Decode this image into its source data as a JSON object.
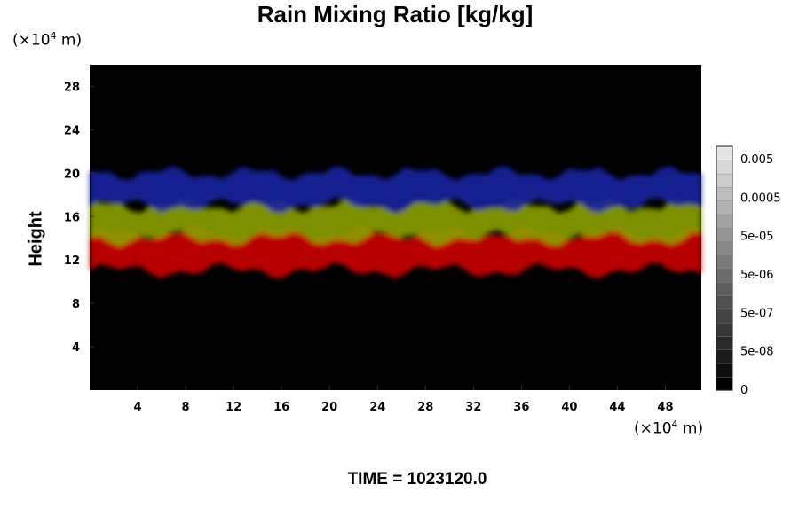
{
  "chart_data": {
    "type": "heatmap",
    "title": "Rain Mixing Ratio [kg/kg]",
    "ylabel": "Height",
    "y_unit": {
      "prefix": "(×10",
      "exp": "4",
      "suffix": " m)"
    },
    "x_unit": {
      "prefix": "(×10",
      "exp": "4",
      "suffix": " m)"
    },
    "xlim": [
      0,
      51
    ],
    "ylim": [
      0,
      30
    ],
    "x_ticks": [
      4,
      8,
      12,
      16,
      20,
      24,
      28,
      32,
      36,
      40,
      44,
      48
    ],
    "y_ticks": [
      4,
      8,
      12,
      16,
      20,
      24,
      28
    ],
    "background_color": "#000000",
    "layers": [
      {
        "color": "#cc0000",
        "y_range": [
          11,
          14.5
        ]
      },
      {
        "color": "#8aa000",
        "y_range": [
          14,
          17
        ]
      },
      {
        "color": "#1a22a0",
        "y_range": [
          17,
          20
        ]
      }
    ],
    "colorbar": {
      "tick_labels": [
        "0.005",
        "0.0005",
        "5e-05",
        "5e-06",
        "5e-07",
        "5e-08",
        "0"
      ],
      "levels": 18
    },
    "footer": "TIME = 1023120.0"
  }
}
